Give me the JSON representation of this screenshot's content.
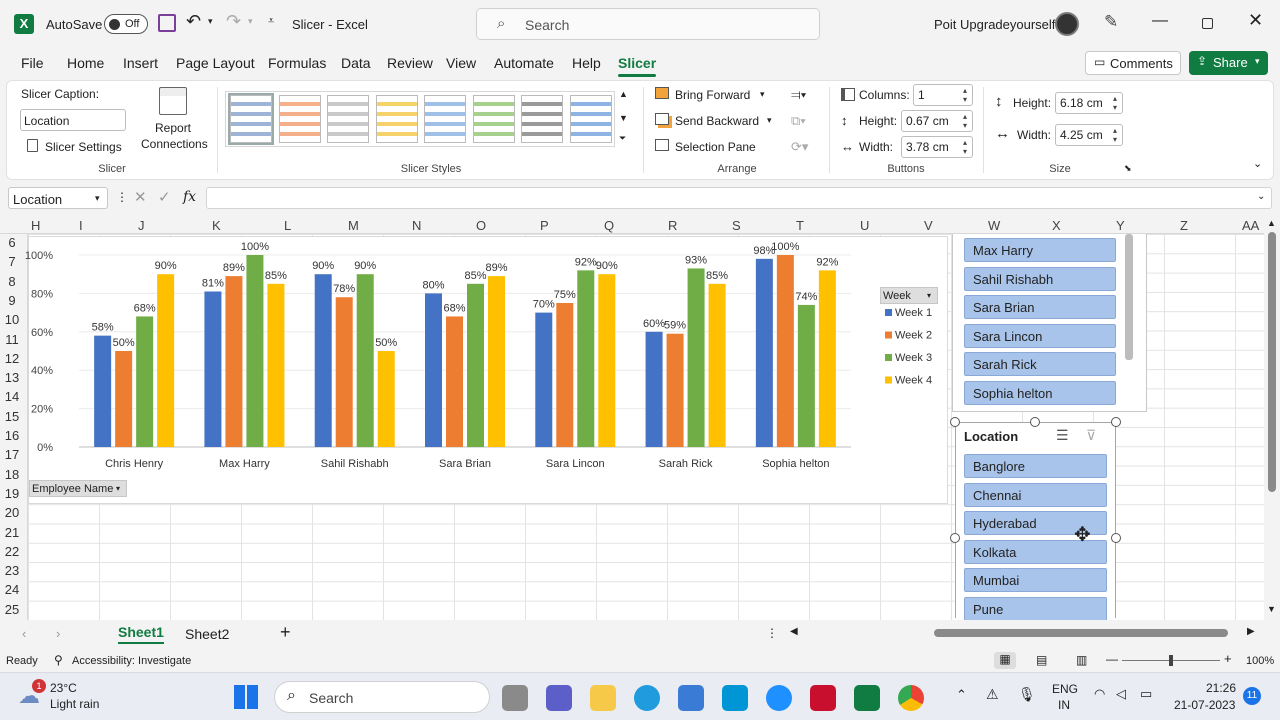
{
  "titlebar": {
    "autosave_label": "AutoSave",
    "autosave_state": "Off",
    "doc_title": "Slicer",
    "app_name": "Excel",
    "separator": "-",
    "search_placeholder": "Search",
    "user_name": "Poit Upgradeyourself"
  },
  "tabs": [
    "File",
    "Home",
    "Insert",
    "Page Layout",
    "Formulas",
    "Data",
    "Review",
    "View",
    "Automate",
    "Help",
    "Slicer"
  ],
  "comments_label": "Comments",
  "share_label": "Share",
  "ribbon": {
    "slicer_caption_label": "Slicer Caption:",
    "slicer_caption_value": "Location",
    "slicer_settings_label": "Slicer Settings",
    "report_connections_line1": "Report",
    "report_connections_line2": "Connections",
    "group_slicer": "Slicer",
    "group_styles": "Slicer Styles",
    "style_colors": [
      "#9db4d6",
      "#f3b08a",
      "#c9c9c9",
      "#f6d36a",
      "#9fc1e6",
      "#a8d08d",
      "#9a9a9a",
      "#8eb4e3"
    ],
    "bring_forward": "Bring Forward",
    "send_backward": "Send Backward",
    "selection_pane": "Selection Pane",
    "group_arrange": "Arrange",
    "columns_label": "Columns:",
    "columns_value": "1",
    "btn_height_label": "Height:",
    "btn_height_value": "0.67 cm",
    "btn_width_label": "Width:",
    "btn_width_value": "3.78 cm",
    "group_buttons": "Buttons",
    "size_height_label": "Height:",
    "size_height_value": "6.18 cm",
    "size_width_label": "Width:",
    "size_width_value": "4.25 cm",
    "group_size": "Size"
  },
  "formula": {
    "name_box": "Location",
    "fx": "fx"
  },
  "columns": [
    "H",
    "I",
    "J",
    "K",
    "L",
    "M",
    "N",
    "O",
    "P",
    "Q",
    "R",
    "S",
    "T",
    "U",
    "V",
    "W",
    "X",
    "Y",
    "Z",
    "AA"
  ],
  "rows": [
    "6",
    "7",
    "8",
    "9",
    "10",
    "11",
    "12",
    "13",
    "14",
    "15",
    "16",
    "17",
    "18",
    "19",
    "20",
    "21",
    "22",
    "23",
    "24",
    "25"
  ],
  "chart_data": {
    "type": "bar",
    "categories": [
      "Chris Henry",
      "Max Harry",
      "Sahil Rishabh",
      "Sara Brian",
      "Sara Lincon",
      "Sarah Rick",
      "Sophia helton"
    ],
    "series": [
      {
        "name": "Week 1",
        "color": "#4472c4",
        "values": [
          58,
          81,
          90,
          80,
          70,
          60,
          98
        ]
      },
      {
        "name": "Week 2",
        "color": "#ed7d31",
        "values": [
          50,
          89,
          78,
          68,
          75,
          59,
          100
        ]
      },
      {
        "name": "Week 3",
        "color": "#70ad47",
        "values": [
          68,
          100,
          90,
          85,
          92,
          93,
          74
        ]
      },
      {
        "name": "Week 4",
        "color": "#ffc000",
        "values": [
          90,
          85,
          50,
          89,
          90,
          85,
          92
        ]
      }
    ],
    "yticks": [
      "0%",
      "20%",
      "40%",
      "60%",
      "80%",
      "100%"
    ],
    "ylim": [
      0,
      100
    ],
    "legend_title": "Week",
    "legend_position": "right",
    "field_button": "Employee Name"
  },
  "slicer_employee": {
    "items": [
      "Max Harry",
      "Sahil Rishabh",
      "Sara Brian",
      "Sara Lincon",
      "Sarah Rick",
      "Sophia helton"
    ]
  },
  "slicer_location": {
    "title": "Location",
    "items": [
      "Banglore",
      "Chennai",
      "Hyderabad",
      "Kolkata",
      "Mumbai",
      "Pune"
    ]
  },
  "sheets": [
    "Sheet1",
    "Sheet2"
  ],
  "status": {
    "ready": "Ready",
    "accessibility": "Accessibility: Investigate",
    "zoom": "100%"
  },
  "taskbar": {
    "temp": "23°C",
    "weather": "Light rain",
    "weather_badge": "1",
    "search": "Search",
    "lang1": "ENG",
    "lang2": "IN",
    "time": "21:26",
    "date": "21-07-2023",
    "notif": "11"
  }
}
